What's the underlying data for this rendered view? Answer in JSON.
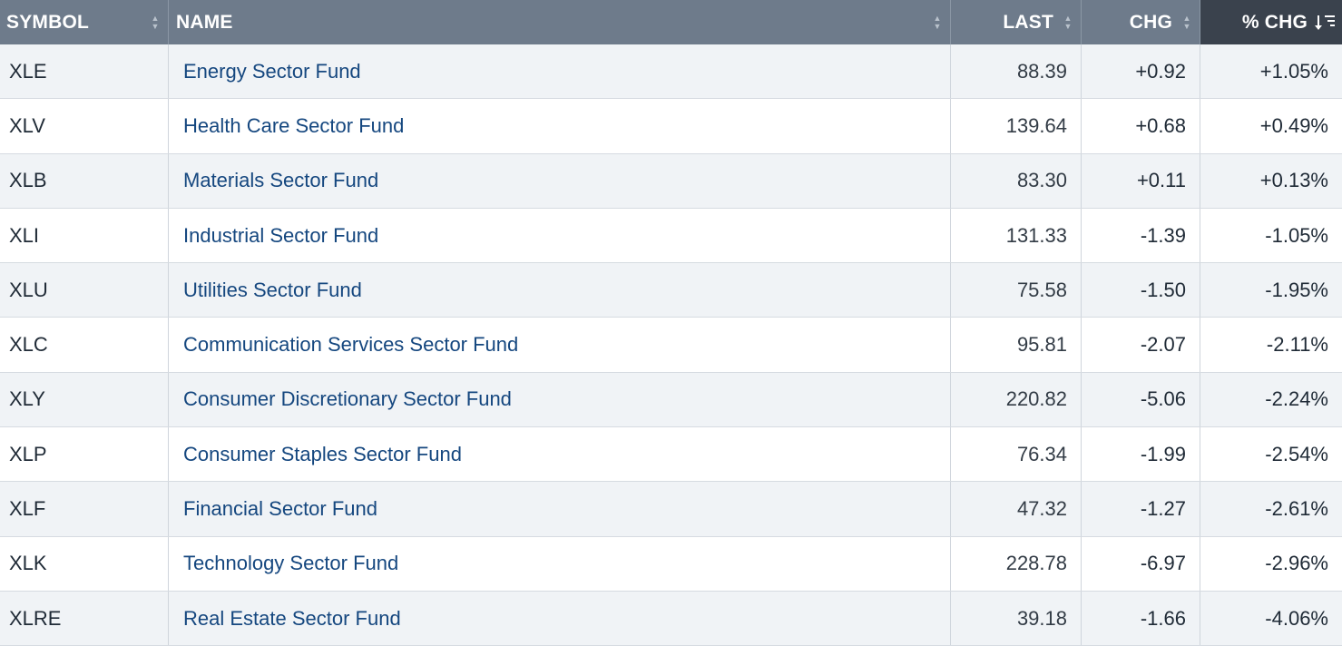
{
  "columns": {
    "symbol": "SYMBOL",
    "name": "NAME",
    "last": "LAST",
    "chg": "CHG",
    "pct_chg": "% CHG"
  },
  "sort": {
    "column": "pct_chg",
    "direction": "descending"
  },
  "colors": {
    "positive": "#1f7a3a",
    "negative": "#cc0000",
    "link": "#15477f",
    "header": "#6e7b8b",
    "header_active": "#3a424d"
  },
  "rows": [
    {
      "symbol": "XLE",
      "name": "Energy Sector Fund",
      "last": "88.39",
      "chg": "+0.92",
      "pct": "+1.05%",
      "dir": "pos"
    },
    {
      "symbol": "XLV",
      "name": "Health Care Sector Fund",
      "last": "139.64",
      "chg": "+0.68",
      "pct": "+0.49%",
      "dir": "pos"
    },
    {
      "symbol": "XLB",
      "name": "Materials Sector Fund",
      "last": "83.30",
      "chg": "+0.11",
      "pct": "+0.13%",
      "dir": "pos"
    },
    {
      "symbol": "XLI",
      "name": "Industrial Sector Fund",
      "last": "131.33",
      "chg": "-1.39",
      "pct": "-1.05%",
      "dir": "neg"
    },
    {
      "symbol": "XLU",
      "name": "Utilities Sector Fund",
      "last": "75.58",
      "chg": "-1.50",
      "pct": "-1.95%",
      "dir": "neg"
    },
    {
      "symbol": "XLC",
      "name": "Communication Services Sector Fund",
      "last": "95.81",
      "chg": "-2.07",
      "pct": "-2.11%",
      "dir": "neg"
    },
    {
      "symbol": "XLY",
      "name": "Consumer Discretionary Sector Fund",
      "last": "220.82",
      "chg": "-5.06",
      "pct": "-2.24%",
      "dir": "neg"
    },
    {
      "symbol": "XLP",
      "name": "Consumer Staples Sector Fund",
      "last": "76.34",
      "chg": "-1.99",
      "pct": "-2.54%",
      "dir": "neg"
    },
    {
      "symbol": "XLF",
      "name": "Financial Sector Fund",
      "last": "47.32",
      "chg": "-1.27",
      "pct": "-2.61%",
      "dir": "neg"
    },
    {
      "symbol": "XLK",
      "name": "Technology Sector Fund",
      "last": "228.78",
      "chg": "-6.97",
      "pct": "-2.96%",
      "dir": "neg"
    },
    {
      "symbol": "XLRE",
      "name": "Real Estate Sector Fund",
      "last": "39.18",
      "chg": "-1.66",
      "pct": "-4.06%",
      "dir": "neg"
    }
  ]
}
